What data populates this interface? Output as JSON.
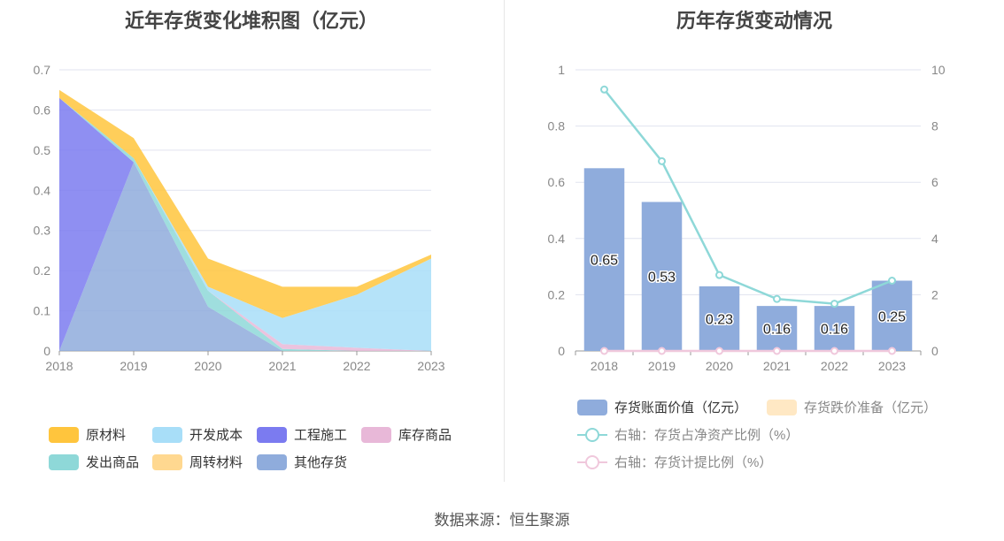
{
  "left": {
    "title": "近年存货变化堆积图（亿元）",
    "legend": [
      {
        "name": "原材料",
        "color": "#ffc53d"
      },
      {
        "name": "开发成本",
        "color": "#a8def8"
      },
      {
        "name": "工程施工",
        "color": "#7b7bf0"
      },
      {
        "name": "库存商品",
        "color": "#e8b8d8"
      },
      {
        "name": "发出商品",
        "color": "#8ed8d8"
      },
      {
        "name": "周转材料",
        "color": "#ffd890"
      },
      {
        "name": "其他存货",
        "color": "#8facdc"
      }
    ]
  },
  "right": {
    "title": "历年存货变动情况",
    "legend": [
      {
        "name": "存货账面价值（亿元）",
        "color": "#8facdc",
        "kind": "bar"
      },
      {
        "name": "存货跌价准备（亿元）",
        "color": "#ffe8c4",
        "kind": "bar",
        "faded": true
      },
      {
        "name": "右轴：存货占净资产比例（%）",
        "color": "#8ed8d8",
        "kind": "line"
      },
      {
        "name": "右轴：存货计提比例（%）",
        "color": "#f0c8dc",
        "kind": "line"
      }
    ]
  },
  "source": "数据来源：恒生聚源",
  "chart_data": [
    {
      "type": "area",
      "stacked": true,
      "title": "近年存货变化堆积图（亿元）",
      "x": [
        "2018",
        "2019",
        "2020",
        "2021",
        "2022",
        "2023"
      ],
      "ylim": [
        0,
        0.7
      ],
      "yticks": [
        "0",
        "0.1",
        "0.2",
        "0.3",
        "0.4",
        "0.5",
        "0.6",
        "0.7"
      ],
      "grid": true,
      "legend_position": "bottom",
      "series": [
        {
          "name": "其他存货",
          "color": "#8facdc",
          "values": [
            0,
            0.47,
            0.11,
            0,
            0,
            0
          ]
        },
        {
          "name": "工程施工",
          "color": "#7b7bf0",
          "values": [
            0.63,
            0,
            0,
            0,
            0,
            0
          ]
        },
        {
          "name": "发出商品",
          "color": "#8ed8d8",
          "values": [
            0,
            0.01,
            0.04,
            0.005,
            0,
            0
          ]
        },
        {
          "name": "库存商品",
          "color": "#e8b8d8",
          "values": [
            0,
            0,
            0,
            0.012,
            0.008,
            0
          ]
        },
        {
          "name": "开发成本",
          "color": "#a8def8",
          "values": [
            0,
            0,
            0.01,
            0.065,
            0.132,
            0.23
          ]
        },
        {
          "name": "原材料",
          "color": "#ffc53d",
          "values": [
            0.02,
            0.05,
            0.07,
            0.078,
            0.02,
            0.01
          ]
        },
        {
          "name": "周转材料",
          "color": "#ffd890",
          "values": [
            0,
            0,
            0,
            0,
            0,
            0
          ]
        }
      ]
    },
    {
      "type": "bar",
      "title": "历年存货变动情况",
      "categories": [
        "2018",
        "2019",
        "2020",
        "2021",
        "2022",
        "2023"
      ],
      "ylim": [
        0,
        1
      ],
      "yticks": [
        "0",
        "0.2",
        "0.4",
        "0.6",
        "0.8",
        "1"
      ],
      "y2lim": [
        0,
        10
      ],
      "y2ticks": [
        "0",
        "2",
        "4",
        "6",
        "8",
        "10"
      ],
      "grid": true,
      "legend_position": "bottom",
      "series": [
        {
          "name": "存货账面价值（亿元）",
          "kind": "bar",
          "axis": "left",
          "color": "#8facdc",
          "values": [
            0.65,
            0.53,
            0.23,
            0.16,
            0.16,
            0.25
          ],
          "labels": [
            "0.65",
            "0.53",
            "0.23",
            "0.16",
            "0.16",
            "0.25"
          ]
        },
        {
          "name": "右轴：存货占净资产比例（%）",
          "kind": "line",
          "axis": "right",
          "color": "#8ed8d8",
          "values": [
            9.3,
            6.75,
            2.7,
            1.85,
            1.68,
            2.5
          ]
        },
        {
          "name": "右轴：存货计提比例（%）",
          "kind": "line",
          "axis": "right",
          "color": "#f0c8dc",
          "values": [
            0,
            0,
            0,
            0,
            0,
            0
          ]
        }
      ]
    }
  ]
}
